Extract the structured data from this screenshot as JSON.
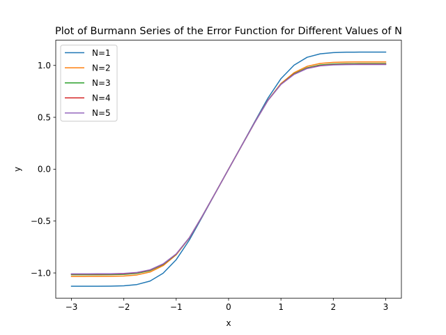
{
  "chart_data": {
    "type": "line",
    "title": "Plot of Burmann Series of the Error Function for Different Values of N",
    "xlabel": "x",
    "ylabel": "y",
    "xlim": [
      -3.3,
      3.3
    ],
    "ylim": [
      -1.243,
      1.243
    ],
    "xticks": [
      -3,
      -2,
      -1,
      0,
      1,
      2,
      3
    ],
    "xtick_labels": [
      "−3",
      "−2",
      "−1",
      "0",
      "1",
      "2",
      "3"
    ],
    "yticks": [
      -1.0,
      -0.5,
      0.0,
      0.5,
      1.0
    ],
    "ytick_labels": [
      "−1.0",
      "−0.5",
      "0.0",
      "0.5",
      "1.0"
    ],
    "grid": false,
    "legend_position": "upper-left",
    "x": [
      -3.0,
      -2.75,
      -2.5,
      -2.25,
      -2.0,
      -1.75,
      -1.5,
      -1.25,
      -1.0,
      -0.75,
      -0.5,
      -0.25,
      0.0,
      0.25,
      0.5,
      0.75,
      1.0,
      1.25,
      1.5,
      1.75,
      2.0,
      2.25,
      2.5,
      2.75,
      3.0
    ],
    "series": [
      {
        "name": "N=1",
        "color": "#1f77b4",
        "values": [
          -1.1284,
          -1.1284,
          -1.1282,
          -1.1273,
          -1.1238,
          -1.1119,
          -1.0784,
          -1.0026,
          -0.8723,
          -0.6833,
          -0.4576,
          -0.2277,
          0.0,
          0.2277,
          0.4576,
          0.6833,
          0.8723,
          1.0026,
          1.0784,
          1.1119,
          1.1238,
          1.1273,
          1.1282,
          1.1284,
          1.1284
        ]
      },
      {
        "name": "N=2",
        "color": "#ff7f0e",
        "values": [
          -1.0336,
          -1.0336,
          -1.0334,
          -1.0326,
          -1.0295,
          -1.0193,
          -0.9913,
          -0.9296,
          -0.8249,
          -0.6641,
          -0.4512,
          -0.2266,
          0.0,
          0.2266,
          0.4512,
          0.6641,
          0.8249,
          0.9296,
          0.9913,
          1.0193,
          1.0295,
          1.0326,
          1.0334,
          1.0336,
          1.0336
        ]
      },
      {
        "name": "N=3",
        "color": "#2ca02c",
        "values": [
          -1.0174,
          -1.0174,
          -1.0172,
          -1.0165,
          -1.0136,
          -1.0038,
          -0.9776,
          -0.9188,
          -0.8196,
          -0.6623,
          -0.4507,
          -0.2265,
          0.0,
          0.2265,
          0.4507,
          0.6623,
          0.8196,
          0.9188,
          0.9776,
          1.0038,
          1.0136,
          1.0165,
          1.0172,
          1.0174,
          1.0174
        ]
      },
      {
        "name": "N=4",
        "color": "#d62728",
        "values": [
          -1.0114,
          -1.0114,
          -1.0112,
          -1.0105,
          -1.0077,
          -0.9981,
          -0.9723,
          -0.9148,
          -0.8176,
          -0.6617,
          -0.4505,
          -0.2265,
          0.0,
          0.2265,
          0.4505,
          0.6617,
          0.8176,
          0.9148,
          0.9723,
          0.9981,
          1.0077,
          1.0105,
          1.0112,
          1.0114,
          1.0114
        ]
      },
      {
        "name": "N=5",
        "color": "#9467bd",
        "values": [
          -1.0085,
          -1.0085,
          -1.0083,
          -1.0076,
          -1.0048,
          -0.9953,
          -0.9697,
          -0.9128,
          -0.8166,
          -0.6614,
          -0.4504,
          -0.2265,
          0.0,
          0.2265,
          0.4504,
          0.6614,
          0.8166,
          0.9128,
          0.9697,
          0.9953,
          1.0048,
          1.0076,
          1.0083,
          1.0085,
          1.0085
        ]
      }
    ]
  }
}
